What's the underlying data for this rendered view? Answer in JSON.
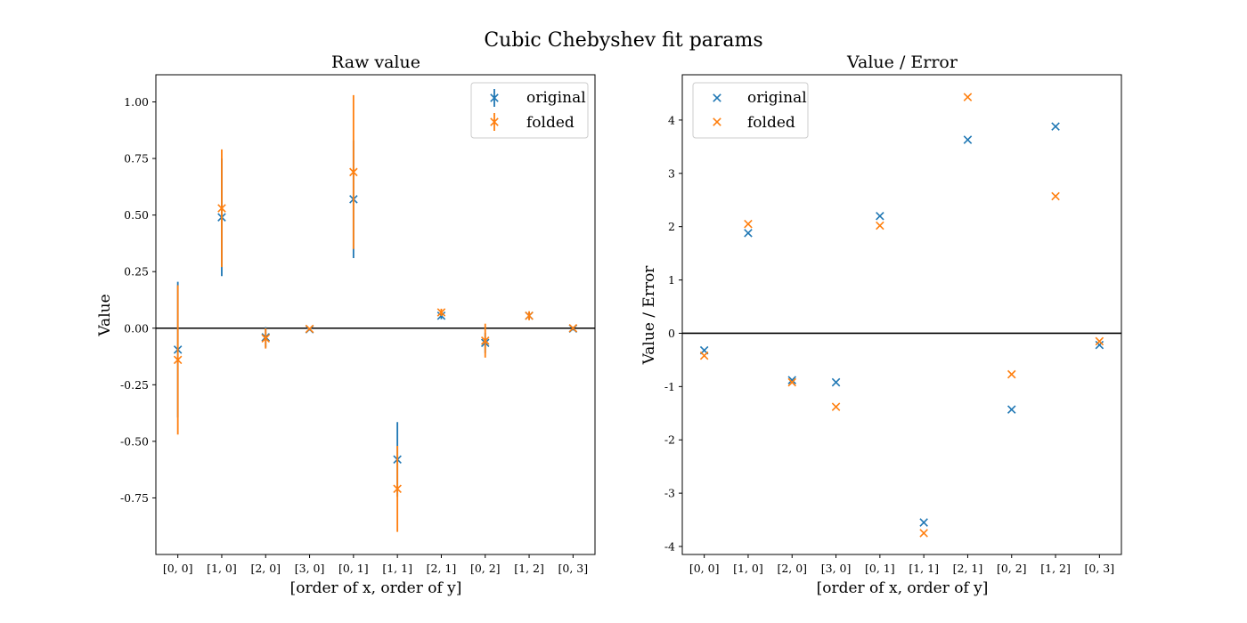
{
  "figure": {
    "title": "Cubic Chebyshev fit params"
  },
  "colors": {
    "original": "#1f77b4",
    "folded": "#ff7f0e",
    "zero_line": "#000000"
  },
  "chart_data": [
    {
      "type": "scatter",
      "title": "Raw value",
      "xlabel": "[order of x, order of y]",
      "ylabel": "Value",
      "categories": [
        "[0, 0]",
        "[1, 0]",
        "[2, 0]",
        "[3, 0]",
        "[0, 1]",
        "[1, 1]",
        "[2, 1]",
        "[0, 2]",
        "[1, 2]",
        "[0, 3]"
      ],
      "ylim": [
        -1.0,
        1.12
      ],
      "yticks": [
        -0.75,
        -0.5,
        -0.25,
        0.0,
        0.25,
        0.5,
        0.75,
        1.0
      ],
      "ytick_labels": [
        "-0.75",
        "-0.50",
        "-0.25",
        "0.00",
        "0.25",
        "0.50",
        "0.75",
        "1.00"
      ],
      "zero_line": true,
      "error_bars": true,
      "legend": "upper right",
      "series": [
        {
          "name": "original",
          "values": [
            -0.095,
            0.49,
            -0.04,
            -0.005,
            0.57,
            -0.58,
            0.055,
            -0.065,
            0.055,
            -0.002
          ],
          "errors": [
            0.3,
            0.26,
            0.045,
            0.006,
            0.26,
            0.165,
            0.015,
            0.045,
            0.015,
            0.008
          ]
        },
        {
          "name": "folded",
          "values": [
            -0.14,
            0.53,
            -0.045,
            -0.003,
            0.69,
            -0.71,
            0.07,
            -0.055,
            0.055,
            0.0
          ],
          "errors": [
            0.33,
            0.26,
            0.045,
            0.005,
            0.34,
            0.19,
            0.016,
            0.075,
            0.02,
            0.005
          ]
        }
      ]
    },
    {
      "type": "scatter",
      "title": "Value / Error",
      "xlabel": "[order of x, order of y]",
      "ylabel": "Value / Error",
      "categories": [
        "[0, 0]",
        "[1, 0]",
        "[2, 0]",
        "[3, 0]",
        "[0, 1]",
        "[1, 1]",
        "[2, 1]",
        "[0, 2]",
        "[1, 2]",
        "[0, 3]"
      ],
      "ylim": [
        -4.15,
        4.85
      ],
      "yticks": [
        -4,
        -3,
        -2,
        -1,
        0,
        1,
        2,
        3,
        4
      ],
      "ytick_labels": [
        "-4",
        "-3",
        "-2",
        "-1",
        "0",
        "1",
        "2",
        "3",
        "4"
      ],
      "zero_line": true,
      "error_bars": false,
      "legend": "upper left",
      "series": [
        {
          "name": "original",
          "values": [
            -0.32,
            1.88,
            -0.88,
            -0.92,
            2.2,
            -3.55,
            3.63,
            -1.43,
            3.88,
            -0.22
          ]
        },
        {
          "name": "folded",
          "values": [
            -0.42,
            2.05,
            -0.92,
            -1.38,
            2.02,
            -3.75,
            4.43,
            -0.77,
            2.57,
            -0.15
          ]
        }
      ]
    }
  ]
}
